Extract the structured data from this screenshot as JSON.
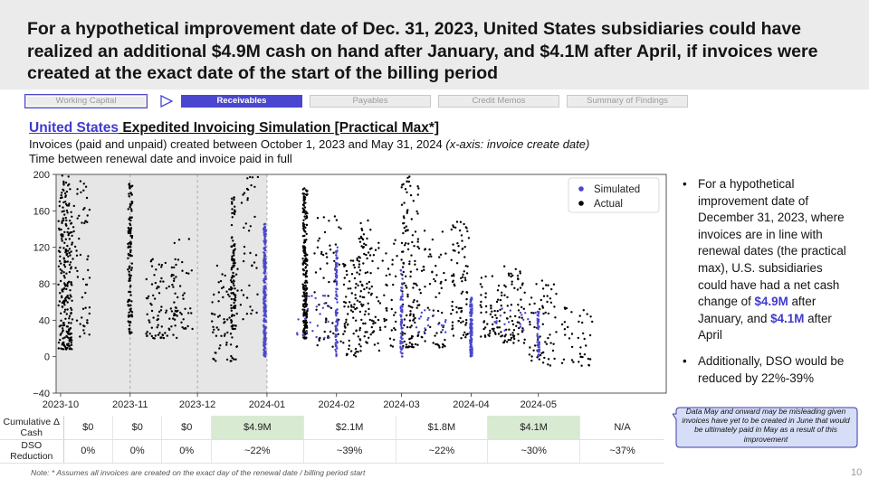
{
  "title": "For a hypothetical improvement date of Dec. 31, 2023, United States subsidiaries could have realized an additional $4.9M cash on hand after January, and $4.1M after April, if invoices were created at the exact date of the start of the billing period",
  "tabs": [
    {
      "label": "Working Capital",
      "state": "outlined"
    },
    {
      "label": "Receivables",
      "state": "active"
    },
    {
      "label": "Payables",
      "state": "inactive"
    },
    {
      "label": "Credit Memos",
      "state": "inactive"
    },
    {
      "label": "Summary of Findings",
      "state": "inactive"
    }
  ],
  "subtitle": {
    "link_text": "United States",
    "rest": " Expedited Invoicing Simulation [Practical Max*]"
  },
  "description": {
    "line1": "Invoices (paid and unpaid) created between October 1, 2023 and May 31, 2024 ",
    "line1_italic": "(x-axis: invoice create date)",
    "line2": "Time between renewal date and invoice paid in full"
  },
  "chart_data": {
    "type": "scatter",
    "x_type": "date",
    "xlim": [
      "2023-09-29",
      "2024-06-27"
    ],
    "ylim": [
      -40,
      200
    ],
    "x_ticks": [
      "2023-10-01",
      "2023-11-01",
      "2023-12-01",
      "2024-01-01",
      "2024-02-01",
      "2024-03-01",
      "2024-04-01",
      "2024-05-01"
    ],
    "x_tick_labels": [
      "2023-10",
      "2023-11",
      "2023-12",
      "2024-01",
      "2024-02",
      "2024-03",
      "2024-04",
      "2024-05"
    ],
    "y_ticks": [
      -40,
      0,
      40,
      80,
      120,
      160,
      200
    ],
    "y_tick_labels": [
      "−40",
      "0",
      "40",
      "80",
      "120",
      "160",
      "200"
    ],
    "shaded_region": [
      "2023-09-29",
      "2024-01-01"
    ],
    "vertical_dashed_lines": [
      "2023-11-01",
      "2023-12-01",
      "2024-01-01"
    ],
    "legend": {
      "position": "top-right",
      "entries": [
        "Simulated",
        "Actual"
      ]
    },
    "colors": {
      "Simulated": "#4a46cf",
      "Actual": "#000000",
      "shade": "#e6e6e6",
      "frame": "#555555"
    },
    "series": [
      {
        "name": "Actual",
        "clusters": [
          {
            "center": "2023-10-03",
            "spread_days": 3,
            "y_range": [
              8,
              200
            ],
            "count": 240
          },
          {
            "center": "2023-10-10",
            "spread_days": 4,
            "y_range": [
              20,
              195
            ],
            "count": 60
          },
          {
            "center": "2023-11-01",
            "spread_days": 2,
            "y_range": [
              25,
              190
            ],
            "count": 120
          },
          {
            "center": "2023-11-15",
            "spread_days": 7,
            "y_range": [
              20,
              110
            ],
            "count": 90
          },
          {
            "center": "2023-11-24",
            "spread_days": 5,
            "y_range": [
              30,
              130
            ],
            "count": 40
          },
          {
            "center": "2023-12-13",
            "spread_days": 6,
            "y_range": [
              -5,
              100
            ],
            "count": 70
          },
          {
            "center": "2023-12-17",
            "spread_days": 2,
            "y_range": [
              30,
              175
            ],
            "count": 90
          },
          {
            "center": "2023-12-24",
            "spread_days": 4,
            "y_range": [
              40,
              200
            ],
            "count": 40
          },
          {
            "center": "2024-01-18",
            "spread_days": 2,
            "y_range": [
              20,
              185
            ],
            "count": 220
          },
          {
            "center": "2024-01-28",
            "spread_days": 6,
            "y_range": [
              10,
              160
            ],
            "count": 60
          },
          {
            "center": "2024-02-08",
            "spread_days": 4,
            "y_range": [
              0,
              110
            ],
            "count": 80
          },
          {
            "center": "2024-02-14",
            "spread_days": 3,
            "y_range": [
              15,
              150
            ],
            "count": 70
          },
          {
            "center": "2024-02-22",
            "spread_days": 6,
            "y_range": [
              5,
              130
            ],
            "count": 60
          },
          {
            "center": "2024-03-05",
            "spread_days": 4,
            "y_range": [
              10,
              200
            ],
            "count": 130
          },
          {
            "center": "2024-03-15",
            "spread_days": 6,
            "y_range": [
              10,
              140
            ],
            "count": 60
          },
          {
            "center": "2024-03-27",
            "spread_days": 4,
            "y_range": [
              20,
              155
            ],
            "count": 80
          },
          {
            "center": "2024-04-10",
            "spread_days": 5,
            "y_range": [
              20,
              90
            ],
            "count": 60
          },
          {
            "center": "2024-04-20",
            "spread_days": 5,
            "y_range": [
              15,
              100
            ],
            "count": 70
          },
          {
            "center": "2024-05-03",
            "spread_days": 6,
            "y_range": [
              -10,
              85
            ],
            "count": 60
          },
          {
            "center": "2024-05-18",
            "spread_days": 7,
            "y_range": [
              -10,
              60
            ],
            "count": 40
          }
        ]
      },
      {
        "name": "Simulated",
        "clusters": [
          {
            "center": "2023-12-31",
            "spread_days": 1,
            "y_range": [
              0,
              148
            ],
            "count": 230
          },
          {
            "center": "2024-01-22",
            "spread_days": 8,
            "y_range": [
              20,
              70
            ],
            "count": 25
          },
          {
            "center": "2024-02-01",
            "spread_days": 1,
            "y_range": [
              0,
              120
            ],
            "count": 90
          },
          {
            "center": "2024-03-01",
            "spread_days": 1,
            "y_range": [
              0,
              95
            ],
            "count": 70
          },
          {
            "center": "2024-03-15",
            "spread_days": 10,
            "y_range": [
              25,
              55
            ],
            "count": 20
          },
          {
            "center": "2024-04-01",
            "spread_days": 1,
            "y_range": [
              0,
              65
            ],
            "count": 150
          },
          {
            "center": "2024-04-20",
            "spread_days": 10,
            "y_range": [
              25,
              55
            ],
            "count": 18
          },
          {
            "center": "2024-05-01",
            "spread_days": 1,
            "y_range": [
              0,
              50
            ],
            "count": 50
          }
        ]
      }
    ]
  },
  "bullets": [
    {
      "parts": [
        {
          "text": "For a hypothetical improvement date of December 31, 2023, where invoices are in line with renewal dates (the practical max), U.S. subsidiaries could have had a net cash change of ",
          "hl": false
        },
        {
          "text": "$4.9M",
          "hl": true
        },
        {
          "text": " after January, and ",
          "hl": false
        },
        {
          "text": "$4.1M",
          "hl": true
        },
        {
          "text": " after April",
          "hl": false
        }
      ]
    },
    {
      "parts": [
        {
          "text": "Additionally, DSO would be reduced by 22%-39%",
          "hl": false
        }
      ]
    }
  ],
  "callout": "Data May and onward may be misleading given invoices have yet to be created in June that would be ultimately paid in May as a result of this improvement",
  "table": {
    "rows": [
      {
        "label": "Cumulative Δ Cash",
        "values": [
          "$0",
          "$0",
          "$0",
          "$4.9M",
          "$2.1M",
          "$1.8M",
          "$4.1M",
          "N/A"
        ],
        "highlight": [
          false,
          false,
          false,
          true,
          false,
          false,
          true,
          false
        ]
      },
      {
        "label": "DSO Reduction",
        "values": [
          "0%",
          "0%",
          "0%",
          "~22%",
          "~39%",
          "~22%",
          "~30%",
          "~37%"
        ],
        "highlight": [
          false,
          false,
          false,
          false,
          false,
          false,
          false,
          false
        ]
      }
    ]
  },
  "note": "Note: * Assumes all invoices are created on the exact day of the renewal date / billing period start",
  "page_number": "10"
}
